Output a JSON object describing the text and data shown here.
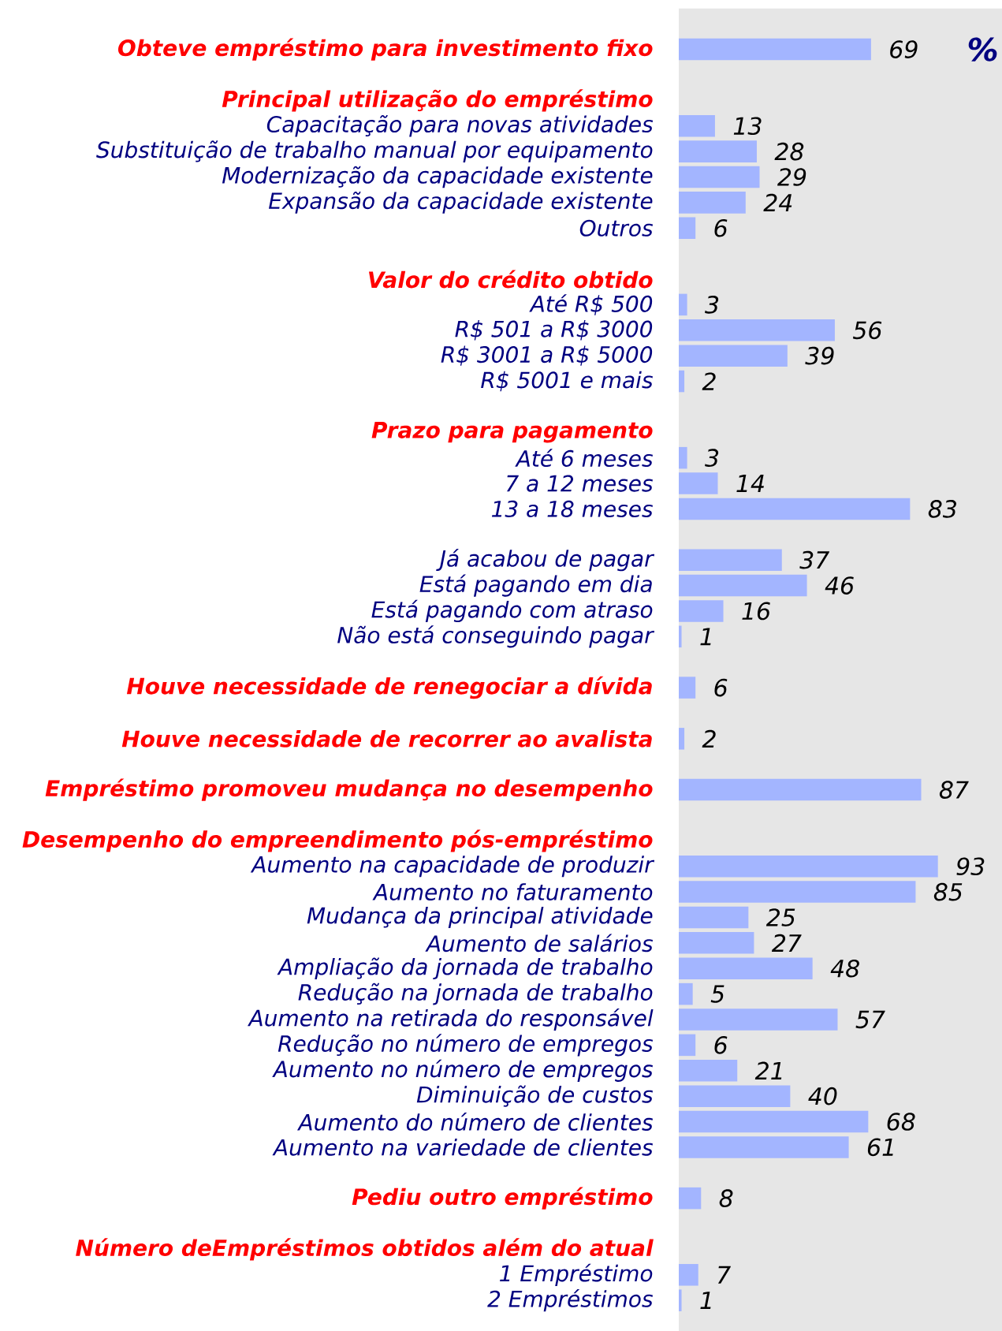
{
  "chart_data": {
    "type": "bar",
    "orientation": "horizontal",
    "color": "#a3b5ff",
    "xlim": [
      0,
      116
    ],
    "data_labels": true,
    "annotations": [
      "%"
    ],
    "categories": [
      "**Obteve empréstimo para investimento fixo**",
      null,
      "**Principal utilização do empréstimo**",
      "Capacitação para novas atividades",
      "Substituição de trabalho manual por equipamento",
      "Modernização da capacidade existente",
      "Expansão da capacidade existente",
      "Outros",
      null,
      "**Valor do crédito obtido**",
      "Até R$ 500",
      "R$ 501 a R$ 3000",
      "R$ 3001 a R$ 5000",
      "R$ 5001 e mais",
      null,
      "**Prazo para pagamento**",
      "Até 6 meses",
      "7 a 12 meses",
      "13 a 18 meses",
      null,
      "Já acabou de pagar",
      "Está pagando em dia",
      "Está pagando com atraso",
      "Não está conseguindo pagar",
      null,
      "**Houve necessidade de renegociar a dívida**",
      null,
      "**Houve necessidade de recorrer ao avalista**",
      null,
      "**Empréstimo promoveu mudança no desempenho**",
      null,
      "**Desempenho do empreendimento pós-empréstimo**",
      "Aumento na capacidade de produzir",
      "Aumento no faturamento",
      "Mudança da principal atividade",
      "Aumento de salários",
      "Ampliação da jornada de trabalho",
      "Redução na jornada de trabalho",
      "Aumento na retirada do responsável",
      "Redução no número de empregos",
      "Aumento no número de empregos",
      "Diminuição de custos",
      "Aumento do número de clientes",
      "Aumento na variedade de clientes",
      null,
      "**Pediu outro empréstimo**",
      null,
      "**Número deEmpréstimos obtidos além do atual**",
      "1 Empréstimo",
      "2 Empréstimos"
    ],
    "values": [
      69,
      null,
      null,
      13,
      28,
      29,
      24,
      6,
      null,
      null,
      3,
      56,
      39,
      2,
      null,
      null,
      3,
      14,
      83,
      null,
      37,
      46,
      16,
      1,
      null,
      6,
      null,
      2,
      null,
      87,
      null,
      null,
      93,
      85,
      25,
      27,
      48,
      5,
      57,
      6,
      21,
      40,
      68,
      61,
      null,
      8,
      null,
      null,
      7,
      1
    ]
  }
}
